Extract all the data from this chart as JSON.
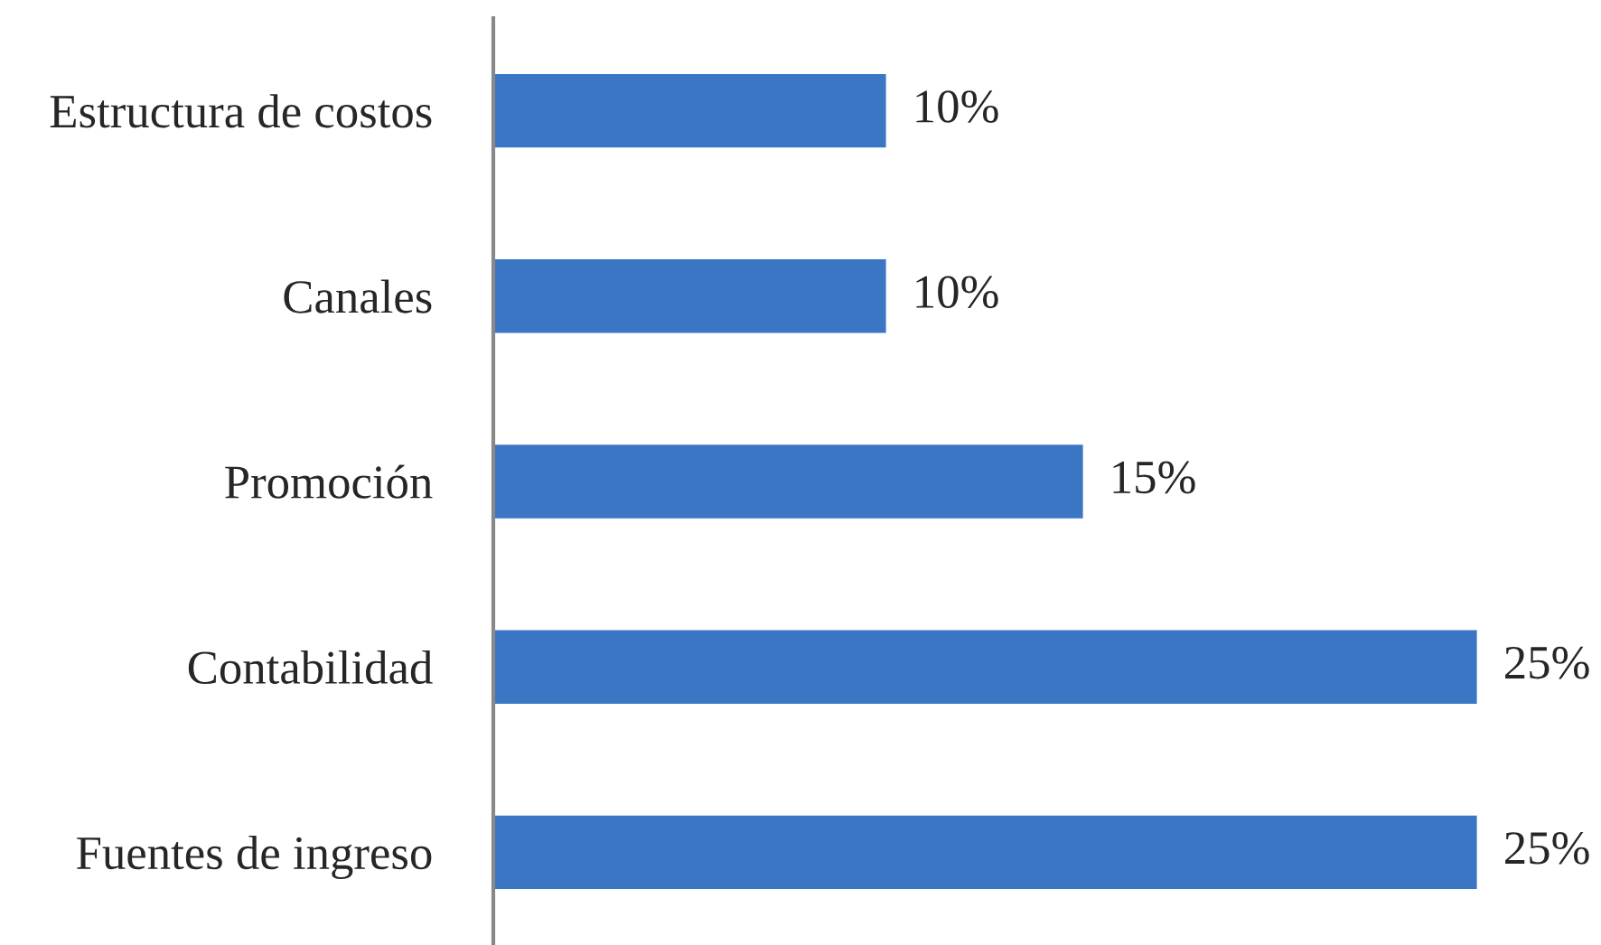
{
  "chart_data": {
    "type": "bar",
    "orientation": "horizontal",
    "categories": [
      "Estructura de costos",
      "Canales",
      "Promoción",
      "Contabilidad",
      "Fuentes de ingreso"
    ],
    "values": [
      10,
      10,
      15,
      25,
      25
    ],
    "value_labels": [
      "10%",
      "10%",
      "15%",
      "25%",
      "25%"
    ],
    "color": "#3a76c4",
    "grid": false,
    "legend": false
  }
}
